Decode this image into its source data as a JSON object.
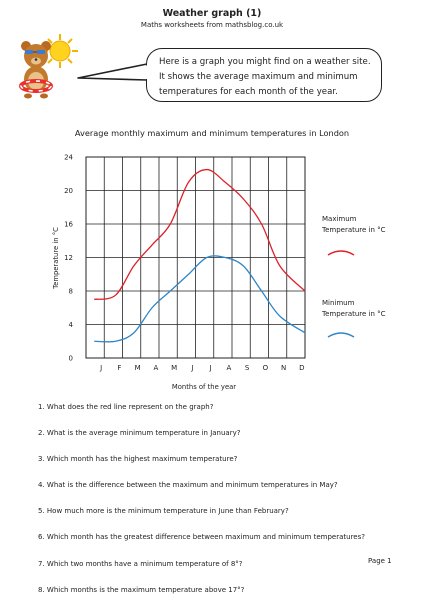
{
  "header": {
    "title": "Weather graph (1)",
    "subtitle": "Maths worksheets from mathsblog.co.uk"
  },
  "bubble": {
    "text": "Here is a graph you might find on a weather site. It shows the average maximum and minimum temperatures for each month of the year."
  },
  "chart_data": {
    "type": "line",
    "title": "Average monthly maximum and minimum temperatures in London",
    "xlabel": "Months of the year",
    "ylabel": "Temperature in °C",
    "categories": [
      "J",
      "F",
      "M",
      "A",
      "M",
      "J",
      "J",
      "A",
      "S",
      "O",
      "N",
      "D"
    ],
    "ylim": [
      0,
      24
    ],
    "yticks": [
      "0",
      "4",
      "8",
      "12",
      "16",
      "20",
      "24"
    ],
    "grid": true,
    "legend_position": "right",
    "series": [
      {
        "name": "Maximum Temperature in °C",
        "color": "#e0202a",
        "values": [
          7,
          7.5,
          11,
          13.5,
          16,
          21,
          22.5,
          21,
          19,
          16,
          11,
          8
        ]
      },
      {
        "name": "Minimum Temperature in °C",
        "color": "#2e86c8",
        "values": [
          2,
          2,
          3,
          6,
          8,
          10,
          12,
          12,
          11,
          8,
          5,
          3
        ]
      }
    ]
  },
  "legend": {
    "max_line1": "Maximum",
    "max_line2": "Temperature in °C",
    "min_line1": "Minimum",
    "min_line2": "Temperature in °C"
  },
  "questions": [
    "1. What does the red line represent on the graph?",
    "2. What is the average minimum temperature in January?",
    "3. Which month has the highest maximum temperature?",
    "4. What is the difference between the maximum and minimum temperatures in May?",
    "5. How much more is the minimum temperature in June than February?",
    "6. Which month has the greatest difference between maximum and minimum temperatures?",
    "7. Which two months have a minimum temperature of 8°?",
    "8. Which months is the maximum temperature above 17°?"
  ],
  "footer": {
    "page": "Page 1"
  },
  "icons": {
    "mascot": "teddy-bear-sun-mascot-icon"
  }
}
